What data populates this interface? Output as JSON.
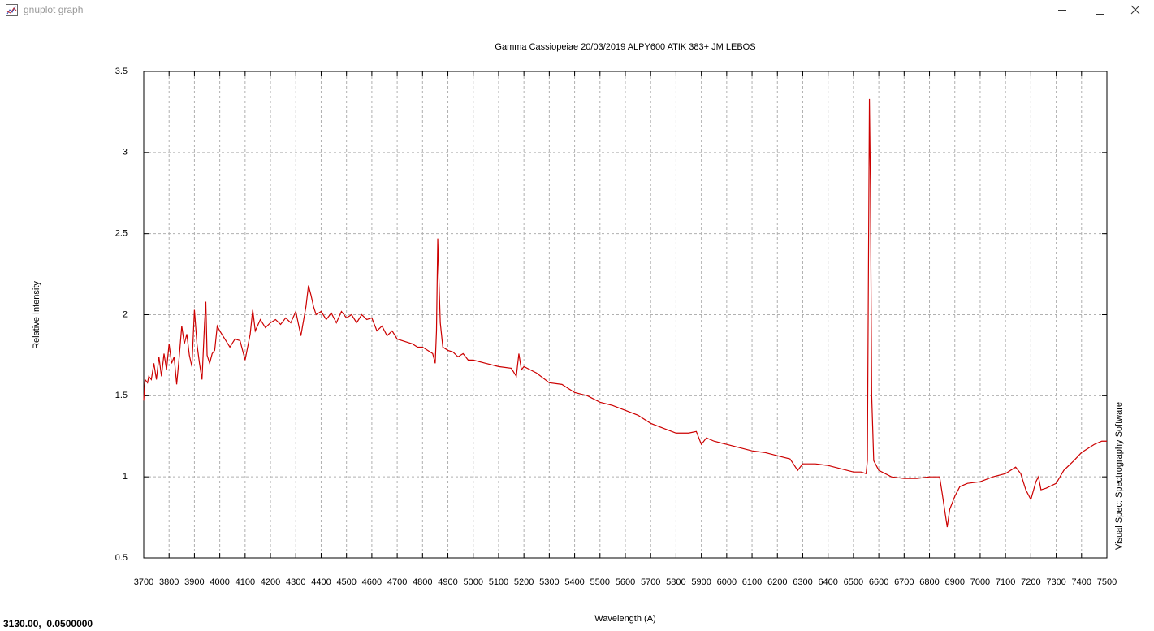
{
  "window": {
    "title": "gnuplot graph"
  },
  "status": "3130.00,  0.0500000",
  "chart_data": {
    "type": "line",
    "title": "Gamma Cassiopeiae 20/03/2019 ALPY600 ATIK 383+ JM LEBOS",
    "x_label": "Wavelength (A)",
    "y_label": "Relative Intensity",
    "right_label": "Visual Spec: Spectrography Software",
    "color": "#cc0000",
    "grid": true,
    "xlim": [
      3700,
      7500
    ],
    "ylim": [
      0.5,
      3.5
    ],
    "xticks": [
      3700,
      3800,
      3900,
      4000,
      4100,
      4200,
      4300,
      4400,
      4500,
      4600,
      4700,
      4800,
      4900,
      5000,
      5100,
      5200,
      5300,
      5400,
      5500,
      5600,
      5700,
      5800,
      5900,
      6000,
      6100,
      6200,
      6300,
      6400,
      6500,
      6600,
      6700,
      6800,
      6900,
      7000,
      7100,
      7200,
      7300,
      7400,
      7500
    ],
    "yticks": [
      0.5,
      1,
      1.5,
      2,
      2.5,
      3,
      3.5
    ],
    "x": [
      3700,
      3705,
      3715,
      3720,
      3730,
      3740,
      3750,
      3760,
      3770,
      3780,
      3790,
      3800,
      3810,
      3820,
      3830,
      3840,
      3850,
      3860,
      3870,
      3880,
      3890,
      3900,
      3910,
      3920,
      3930,
      3940,
      3945,
      3950,
      3960,
      3970,
      3980,
      3990,
      4000,
      4020,
      4040,
      4060,
      4080,
      4100,
      4110,
      4120,
      4130,
      4140,
      4160,
      4180,
      4200,
      4220,
      4240,
      4260,
      4280,
      4300,
      4320,
      4340,
      4350,
      4360,
      4370,
      4380,
      4400,
      4420,
      4440,
      4460,
      4480,
      4500,
      4520,
      4540,
      4560,
      4580,
      4600,
      4620,
      4640,
      4660,
      4680,
      4700,
      4720,
      4740,
      4760,
      4780,
      4800,
      4820,
      4840,
      4850,
      4855,
      4860,
      4865,
      4870,
      4880,
      4900,
      4920,
      4940,
      4960,
      4980,
      5000,
      5050,
      5100,
      5150,
      5170,
      5180,
      5190,
      5200,
      5250,
      5300,
      5350,
      5400,
      5450,
      5500,
      5550,
      5600,
      5650,
      5700,
      5750,
      5800,
      5850,
      5880,
      5900,
      5920,
      5950,
      6000,
      6050,
      6100,
      6150,
      6200,
      6250,
      6280,
      6300,
      6350,
      6400,
      6450,
      6500,
      6530,
      6550,
      6555,
      6560,
      6563,
      6567,
      6572,
      6580,
      6600,
      6650,
      6700,
      6750,
      6800,
      6840,
      6850,
      6870,
      6880,
      6900,
      6920,
      6950,
      7000,
      7050,
      7100,
      7140,
      7160,
      7180,
      7200,
      7220,
      7230,
      7240,
      7260,
      7300,
      7330,
      7370,
      7400,
      7450,
      7480,
      7500
    ],
    "values": [
      1.47,
      1.6,
      1.58,
      1.62,
      1.6,
      1.7,
      1.6,
      1.74,
      1.62,
      1.76,
      1.66,
      1.82,
      1.7,
      1.74,
      1.57,
      1.74,
      1.93,
      1.82,
      1.88,
      1.75,
      1.68,
      2.03,
      1.82,
      1.7,
      1.6,
      1.95,
      2.08,
      1.75,
      1.7,
      1.76,
      1.78,
      1.93,
      1.9,
      1.85,
      1.8,
      1.85,
      1.84,
      1.72,
      1.8,
      1.88,
      2.03,
      1.9,
      1.97,
      1.92,
      1.95,
      1.97,
      1.94,
      1.98,
      1.95,
      2.02,
      1.87,
      2.05,
      2.18,
      2.12,
      2.05,
      2.0,
      2.02,
      1.97,
      2.01,
      1.95,
      2.02,
      1.98,
      2.0,
      1.95,
      2.0,
      1.97,
      1.98,
      1.9,
      1.93,
      1.87,
      1.9,
      1.85,
      1.84,
      1.83,
      1.82,
      1.8,
      1.8,
      1.78,
      1.76,
      1.7,
      1.9,
      2.47,
      2.2,
      1.95,
      1.8,
      1.78,
      1.77,
      1.74,
      1.76,
      1.72,
      1.72,
      1.7,
      1.68,
      1.67,
      1.62,
      1.76,
      1.66,
      1.68,
      1.64,
      1.58,
      1.57,
      1.52,
      1.5,
      1.46,
      1.44,
      1.41,
      1.38,
      1.33,
      1.3,
      1.27,
      1.27,
      1.28,
      1.2,
      1.24,
      1.22,
      1.2,
      1.18,
      1.16,
      1.15,
      1.13,
      1.11,
      1.04,
      1.08,
      1.08,
      1.07,
      1.05,
      1.03,
      1.03,
      1.02,
      1.1,
      2.5,
      3.33,
      2.8,
      1.5,
      1.1,
      1.04,
      1.0,
      0.99,
      0.99,
      1.0,
      1.0,
      0.9,
      0.69,
      0.8,
      0.88,
      0.94,
      0.96,
      0.97,
      1.0,
      1.02,
      1.06,
      1.02,
      0.92,
      0.86,
      0.97,
      1.0,
      0.92,
      0.93,
      0.96,
      1.04,
      1.1,
      1.15,
      1.2,
      1.22,
      1.22
    ]
  }
}
